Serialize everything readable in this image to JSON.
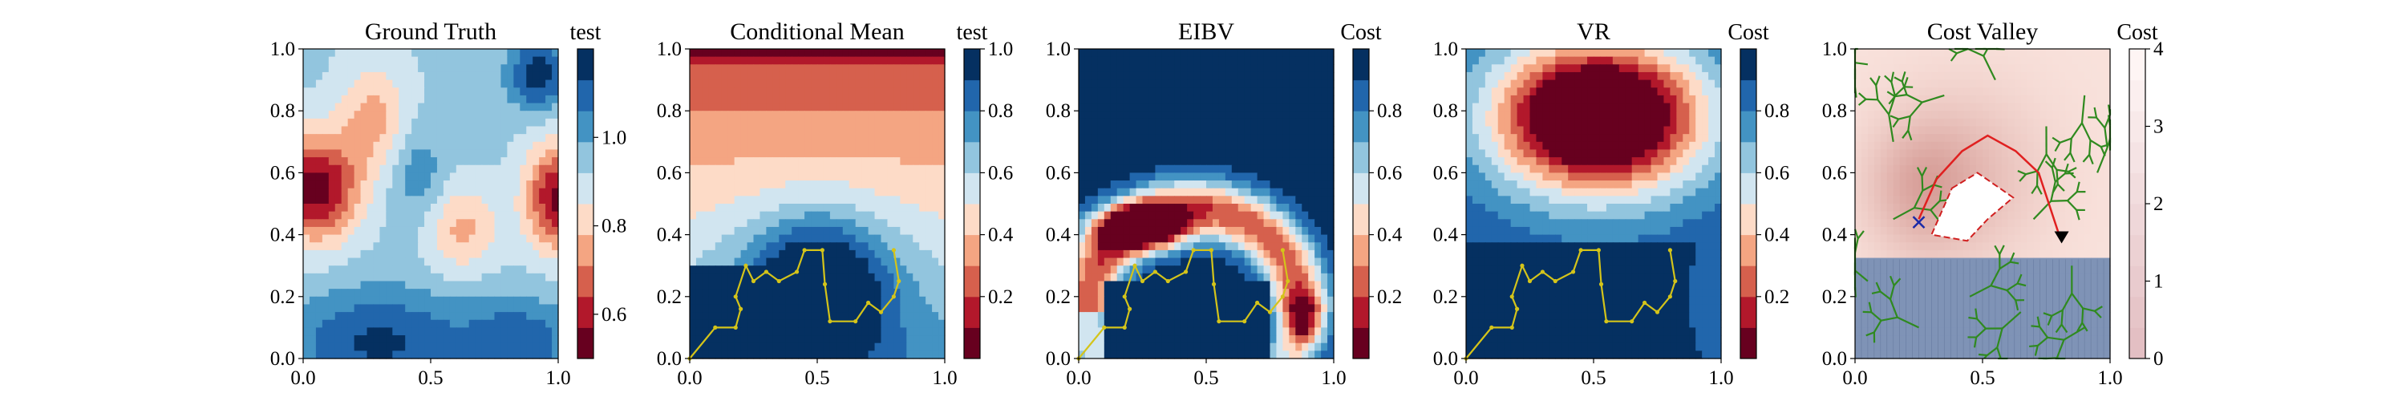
{
  "figure": {
    "panels": [
      {
        "id": "ground-truth",
        "title": "Ground Truth",
        "cbar_label": "test"
      },
      {
        "id": "conditional-mean",
        "title": "Conditional Mean",
        "cbar_label": "test"
      },
      {
        "id": "eibv",
        "title": "EIBV",
        "cbar_label": "Cost"
      },
      {
        "id": "vr",
        "title": "VR",
        "cbar_label": "Cost"
      },
      {
        "id": "cost-valley",
        "title": "Cost Valley",
        "cbar_label": "Cost"
      }
    ]
  },
  "chart_data": [
    {
      "type": "heatmap",
      "title": "Ground Truth",
      "colorbar_label": "test",
      "cmap": "RdBu",
      "xlim": [
        0,
        1
      ],
      "ylim": [
        0,
        1
      ],
      "xticks": [
        "0.0",
        "0.5",
        "1.0"
      ],
      "yticks": [
        "0.0",
        "0.2",
        "0.4",
        "0.6",
        "0.8",
        "1.0"
      ],
      "colorbar_range": [
        0.5,
        1.2
      ],
      "colorbar_ticks": [
        "0.6",
        "0.8",
        "1.0"
      ]
    },
    {
      "type": "heatmap",
      "title": "Conditional Mean",
      "colorbar_label": "test",
      "cmap": "RdBu",
      "xlim": [
        0,
        1
      ],
      "ylim": [
        0,
        1
      ],
      "xticks": [
        "0.0",
        "0.5",
        "1.0"
      ],
      "yticks": [
        "0.0",
        "0.2",
        "0.4",
        "0.6",
        "0.8",
        "1.0"
      ],
      "colorbar_range": [
        0.0,
        1.0
      ],
      "colorbar_ticks": [
        "0.2",
        "0.4",
        "0.6",
        "0.8",
        "1.0"
      ],
      "path_color": "#d4c41a",
      "path": [
        [
          0.0,
          0.0
        ],
        [
          0.1,
          0.1
        ],
        [
          0.18,
          0.1
        ],
        [
          0.2,
          0.16
        ],
        [
          0.18,
          0.2
        ],
        [
          0.22,
          0.3
        ],
        [
          0.25,
          0.25
        ],
        [
          0.3,
          0.28
        ],
        [
          0.35,
          0.25
        ],
        [
          0.42,
          0.28
        ],
        [
          0.45,
          0.35
        ],
        [
          0.52,
          0.35
        ],
        [
          0.53,
          0.24
        ],
        [
          0.55,
          0.12
        ],
        [
          0.65,
          0.12
        ],
        [
          0.7,
          0.18
        ],
        [
          0.75,
          0.15
        ],
        [
          0.8,
          0.2
        ],
        [
          0.82,
          0.25
        ],
        [
          0.8,
          0.35
        ]
      ]
    },
    {
      "type": "heatmap",
      "title": "EIBV",
      "colorbar_label": "Cost",
      "cmap": "RdBu",
      "xlim": [
        0,
        1
      ],
      "ylim": [
        0,
        1
      ],
      "xticks": [
        "0.0",
        "0.5",
        "1.0"
      ],
      "yticks": [
        "0.0",
        "0.2",
        "0.4",
        "0.6",
        "0.8",
        "1.0"
      ],
      "colorbar_range": [
        0.0,
        1.0
      ],
      "colorbar_ticks": [
        "0.2",
        "0.4",
        "0.6",
        "0.8"
      ],
      "path_color": "#d4c41a",
      "path": [
        [
          0.0,
          0.0
        ],
        [
          0.1,
          0.1
        ],
        [
          0.18,
          0.1
        ],
        [
          0.2,
          0.16
        ],
        [
          0.18,
          0.2
        ],
        [
          0.22,
          0.3
        ],
        [
          0.25,
          0.25
        ],
        [
          0.3,
          0.28
        ],
        [
          0.35,
          0.25
        ],
        [
          0.42,
          0.28
        ],
        [
          0.45,
          0.35
        ],
        [
          0.52,
          0.35
        ],
        [
          0.53,
          0.24
        ],
        [
          0.55,
          0.12
        ],
        [
          0.65,
          0.12
        ],
        [
          0.7,
          0.18
        ],
        [
          0.75,
          0.15
        ],
        [
          0.8,
          0.2
        ],
        [
          0.82,
          0.25
        ],
        [
          0.8,
          0.35
        ]
      ]
    },
    {
      "type": "heatmap",
      "title": "VR",
      "colorbar_label": "Cost",
      "cmap": "RdBu",
      "xlim": [
        0,
        1
      ],
      "ylim": [
        0,
        1
      ],
      "xticks": [
        "0.0",
        "0.5",
        "1.0"
      ],
      "yticks": [
        "0.0",
        "0.2",
        "0.4",
        "0.6",
        "0.8",
        "1.0"
      ],
      "colorbar_range": [
        0.0,
        1.0
      ],
      "colorbar_ticks": [
        "0.2",
        "0.4",
        "0.6",
        "0.8"
      ],
      "path_color": "#d4c41a",
      "path": [
        [
          0.0,
          0.0
        ],
        [
          0.1,
          0.1
        ],
        [
          0.18,
          0.1
        ],
        [
          0.2,
          0.16
        ],
        [
          0.18,
          0.2
        ],
        [
          0.22,
          0.3
        ],
        [
          0.25,
          0.25
        ],
        [
          0.3,
          0.28
        ],
        [
          0.35,
          0.25
        ],
        [
          0.42,
          0.28
        ],
        [
          0.45,
          0.35
        ],
        [
          0.52,
          0.35
        ],
        [
          0.53,
          0.24
        ],
        [
          0.55,
          0.12
        ],
        [
          0.65,
          0.12
        ],
        [
          0.7,
          0.18
        ],
        [
          0.75,
          0.15
        ],
        [
          0.8,
          0.2
        ],
        [
          0.82,
          0.25
        ],
        [
          0.8,
          0.35
        ]
      ]
    },
    {
      "type": "heatmap",
      "title": "Cost Valley",
      "colorbar_label": "Cost",
      "cmap": "Reds",
      "xlim": [
        0,
        1
      ],
      "ylim": [
        0,
        1
      ],
      "xticks": [
        "0.0",
        "0.5",
        "1.0"
      ],
      "yticks": [
        "0.0",
        "0.2",
        "0.4",
        "0.6",
        "0.8",
        "1.0"
      ],
      "colorbar_range": [
        0,
        4
      ],
      "colorbar_ticks": [
        "0",
        "1",
        "2",
        "3",
        "4"
      ],
      "obstacle": [
        [
          0.38,
          0.55
        ],
        [
          0.48,
          0.6
        ],
        [
          0.62,
          0.52
        ],
        [
          0.52,
          0.45
        ],
        [
          0.44,
          0.38
        ],
        [
          0.3,
          0.4
        ]
      ],
      "planned_path": [
        [
          0.25,
          0.45
        ],
        [
          0.32,
          0.58
        ],
        [
          0.42,
          0.67
        ],
        [
          0.52,
          0.72
        ],
        [
          0.63,
          0.67
        ],
        [
          0.72,
          0.6
        ],
        [
          0.8,
          0.4
        ]
      ],
      "start_marker": [
        0.25,
        0.44
      ],
      "end_marker": [
        0.81,
        0.39
      ],
      "tree_color": "#2f8a1f",
      "path_color": "#e02020",
      "obstacle_color": "#d02020"
    }
  ]
}
